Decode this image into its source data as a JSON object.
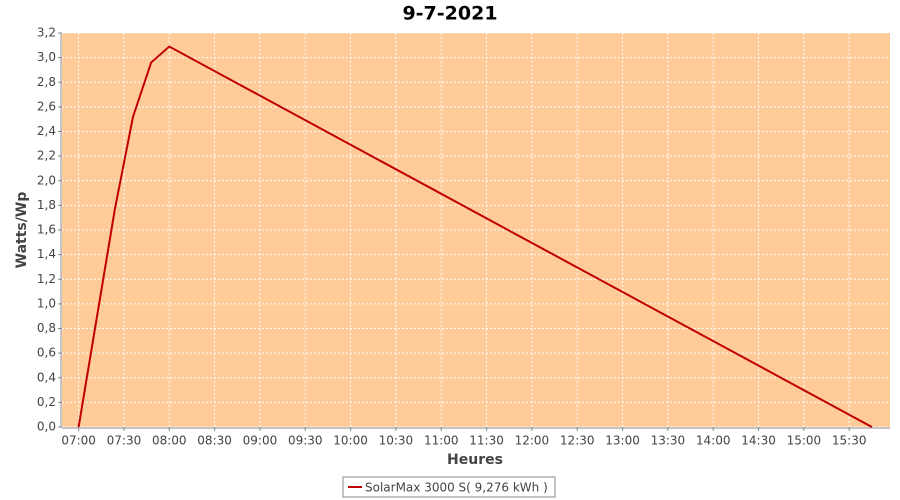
{
  "chart_data": {
    "type": "line",
    "title": "9-7-2021",
    "x_label": "Heures",
    "y_label": "Watts/Wp",
    "x": [
      "07:00",
      "07:24",
      "07:36",
      "07:48",
      "08:00",
      "15:45"
    ],
    "series": [
      {
        "name": "SolarMax 3000 S( 9,276 kWh )",
        "color": "#c00000",
        "values": [
          0.0,
          1.77,
          2.52,
          2.96,
          3.09,
          0.0
        ]
      }
    ],
    "xlim": [
      "06:49",
      "15:57"
    ],
    "xticks": [
      "07:00",
      "07:30",
      "08:00",
      "08:30",
      "09:00",
      "09:30",
      "10:00",
      "10:30",
      "11:00",
      "11:30",
      "12:00",
      "12:30",
      "13:00",
      "13:30",
      "14:00",
      "14:30",
      "15:00",
      "15:30"
    ],
    "ylim": [
      0,
      3.2
    ],
    "yticks": [
      {
        "value": 0,
        "label": "0,0"
      },
      {
        "value": 0.2,
        "label": "0,2"
      },
      {
        "value": 0.4,
        "label": "0,4"
      },
      {
        "value": 0.6,
        "label": "0,6"
      },
      {
        "value": 0.8,
        "label": "0,8"
      },
      {
        "value": 1.0,
        "label": "1,0"
      },
      {
        "value": 1.2,
        "label": "1,2"
      },
      {
        "value": 1.4,
        "label": "1,4"
      },
      {
        "value": 1.6,
        "label": "1,6"
      },
      {
        "value": 1.8,
        "label": "1,8"
      },
      {
        "value": 2.0,
        "label": "2,0"
      },
      {
        "value": 2.2,
        "label": "2,2"
      },
      {
        "value": 2.4,
        "label": "2,4"
      },
      {
        "value": 2.6,
        "label": "2,6"
      },
      {
        "value": 2.8,
        "label": "2,8"
      },
      {
        "value": 3.0,
        "label": "3,0"
      },
      {
        "value": 3.2,
        "label": "3,2"
      }
    ],
    "grid": true,
    "plot_background": "#ffcc99",
    "legend": "bottom"
  }
}
